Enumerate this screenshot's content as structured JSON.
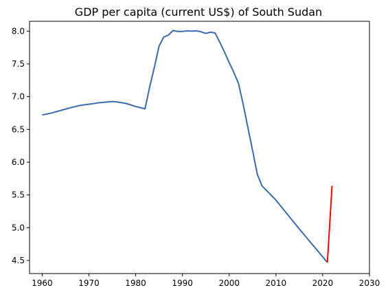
{
  "chart_data": {
    "type": "line",
    "title": "GDP per capita (current US$) of South Sudan",
    "xlabel": "",
    "ylabel": "",
    "xlim": [
      1957.3,
      2030
    ],
    "ylim": [
      4.3,
      8.15
    ],
    "grid": false,
    "x_ticks": [
      1960,
      1970,
      1980,
      1990,
      2000,
      2010,
      2020,
      2030
    ],
    "y_ticks": [
      4.5,
      5.0,
      5.5,
      6.0,
      6.5,
      7.0,
      7.5,
      8.0
    ],
    "x_tick_labels": [
      "1960",
      "1970",
      "1980",
      "1990",
      "2000",
      "2010",
      "2020",
      "2030"
    ],
    "y_tick_labels": [
      "4.5",
      "5.0",
      "5.5",
      "6.0",
      "6.5",
      "7.0",
      "7.5",
      "8.0"
    ],
    "series": [
      {
        "color": "#3a6aa8",
        "x": [
          1960,
          1962,
          1964,
          1966,
          1968,
          1970,
          1972,
          1974,
          1975,
          1976,
          1978,
          1980,
          1982,
          1983,
          1984,
          1985,
          1986,
          1987,
          1988,
          1989,
          1990,
          1991,
          1992,
          1993,
          1994,
          1995,
          1996,
          1997,
          1998,
          1999,
          2000,
          2001,
          2002,
          2003,
          2004,
          2005,
          2006,
          2007,
          2010,
          2015,
          2021
        ],
        "y": [
          6.72,
          6.75,
          6.79,
          6.83,
          6.865,
          6.885,
          6.905,
          6.92,
          6.925,
          6.92,
          6.895,
          6.85,
          6.815,
          7.15,
          7.45,
          7.77,
          7.91,
          7.94,
          8.01,
          7.995,
          7.995,
          8.005,
          8.0,
          8.005,
          7.99,
          7.965,
          7.985,
          7.97,
          7.83,
          7.68,
          7.52,
          7.37,
          7.2,
          6.88,
          6.53,
          6.18,
          5.82,
          5.64,
          5.42,
          4.98,
          4.47
        ]
      },
      {
        "color": "#ff0000",
        "x": [
          2021,
          2022
        ],
        "y": [
          4.47,
          5.64
        ]
      }
    ]
  }
}
